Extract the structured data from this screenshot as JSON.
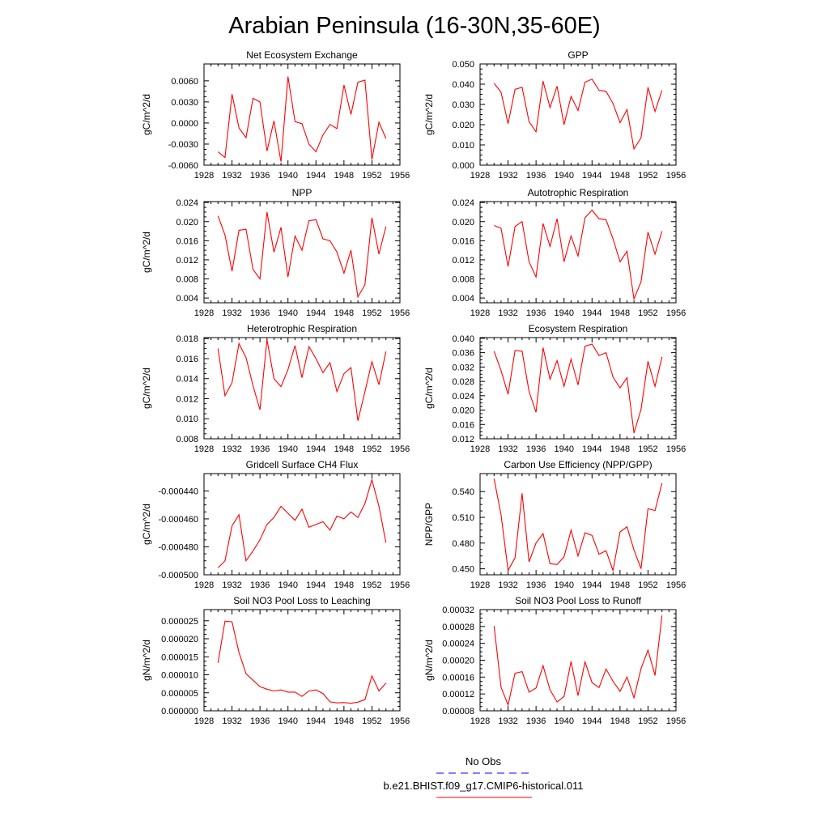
{
  "title": "Arabian Peninsula (16-30N,35-60E)",
  "legend": [
    {
      "label": "No Obs",
      "color": "#0000ff",
      "dash": true
    },
    {
      "label": "b.e21.BHIST.f09_g17.CMIP6-historical.011",
      "color": "#ff0000",
      "dash": false
    }
  ],
  "colors": {
    "series": "#ff0000",
    "obs": "#0000ff",
    "axes": "#000000"
  },
  "chart_data": [
    {
      "type": "line",
      "title": "Net Ecosystem Exchange",
      "xlabel": "",
      "ylabel": "gC/m^2/d",
      "xlim": [
        1928,
        1956
      ],
      "x_ticks": [
        1928,
        1932,
        1936,
        1940,
        1944,
        1948,
        1952,
        1956
      ],
      "ylim": [
        -0.006,
        0.0084
      ],
      "y_ticks": [
        -0.006,
        -0.003,
        0.0,
        0.003,
        0.006
      ],
      "y_tick_labels": [
        "-0.0060",
        "-0.0030",
        "0.0000",
        "0.0030",
        "0.0060"
      ],
      "series": [
        {
          "x": [
            1930,
            1931,
            1932,
            1933,
            1934,
            1935,
            1936,
            1937,
            1938,
            1939,
            1940,
            1941,
            1942,
            1943,
            1944,
            1945,
            1946,
            1947,
            1948,
            1949,
            1950,
            1951,
            1952,
            1953,
            1954
          ],
          "values": [
            -0.0041,
            -0.0049,
            0.0041,
            -0.0007,
            -0.0021,
            0.0035,
            0.003,
            -0.004,
            0.0003,
            -0.0055,
            0.0066,
            0.0002,
            -0.0001,
            -0.003,
            -0.0041,
            -0.0017,
            -0.0002,
            -0.0008,
            0.0054,
            0.0012,
            0.0058,
            0.0061,
            -0.0052,
            0.0001,
            -0.0022
          ]
        }
      ]
    },
    {
      "type": "line",
      "title": "GPP",
      "xlabel": "",
      "ylabel": "gC/m^2/d",
      "xlim": [
        1928,
        1956
      ],
      "x_ticks": [
        1928,
        1932,
        1936,
        1940,
        1944,
        1948,
        1952,
        1956
      ],
      "ylim": [
        0.0,
        0.05
      ],
      "y_ticks": [
        0.0,
        0.01,
        0.02,
        0.03,
        0.04,
        0.05
      ],
      "y_tick_labels": [
        "0.000",
        "0.010",
        "0.020",
        "0.030",
        "0.040",
        "0.050"
      ],
      "series": [
        {
          "x": [
            1930,
            1931,
            1932,
            1933,
            1934,
            1935,
            1936,
            1937,
            1938,
            1939,
            1940,
            1941,
            1942,
            1943,
            1944,
            1945,
            1946,
            1947,
            1948,
            1949,
            1950,
            1951,
            1952,
            1953,
            1954
          ],
          "values": [
            0.0405,
            0.036,
            0.0205,
            0.0375,
            0.0385,
            0.0215,
            0.0165,
            0.0415,
            0.0285,
            0.039,
            0.02,
            0.034,
            0.027,
            0.041,
            0.0425,
            0.037,
            0.0365,
            0.0305,
            0.021,
            0.0275,
            0.008,
            0.0135,
            0.0385,
            0.0265,
            0.037
          ]
        }
      ]
    },
    {
      "type": "line",
      "title": "NPP",
      "xlabel": "",
      "ylabel": "gC/m^2/d",
      "xlim": [
        1928,
        1956
      ],
      "x_ticks": [
        1928,
        1932,
        1936,
        1940,
        1944,
        1948,
        1952,
        1956
      ],
      "ylim": [
        0.003,
        0.0242
      ],
      "y_ticks": [
        0.004,
        0.008,
        0.012,
        0.016,
        0.02,
        0.024
      ],
      "y_tick_labels": [
        "0.004",
        "0.008",
        "0.012",
        "0.016",
        "0.020",
        "0.024"
      ],
      "series": [
        {
          "x": [
            1930,
            1931,
            1932,
            1933,
            1934,
            1935,
            1936,
            1937,
            1938,
            1939,
            1940,
            1941,
            1942,
            1943,
            1944,
            1945,
            1946,
            1947,
            1948,
            1949,
            1950,
            1951,
            1952,
            1953,
            1954
          ],
          "values": [
            0.0212,
            0.0172,
            0.0096,
            0.0182,
            0.0184,
            0.01,
            0.008,
            0.022,
            0.0136,
            0.0188,
            0.0084,
            0.017,
            0.014,
            0.0202,
            0.0204,
            0.0164,
            0.016,
            0.0136,
            0.0092,
            0.014,
            0.0042,
            0.0068,
            0.0208,
            0.0132,
            0.019
          ]
        }
      ]
    },
    {
      "type": "line",
      "title": "Autotrophic Respiration",
      "xlabel": "",
      "ylabel": "",
      "xlim": [
        1928,
        1956
      ],
      "x_ticks": [
        1928,
        1932,
        1936,
        1940,
        1944,
        1948,
        1952,
        1956
      ],
      "ylim": [
        0.003,
        0.0242
      ],
      "y_ticks": [
        0.004,
        0.008,
        0.012,
        0.016,
        0.02,
        0.024
      ],
      "y_tick_labels": [
        "0.004",
        "0.008",
        "0.012",
        "0.016",
        "0.020",
        "0.024"
      ],
      "series": [
        {
          "x": [
            1930,
            1931,
            1932,
            1933,
            1934,
            1935,
            1936,
            1937,
            1938,
            1939,
            1940,
            1941,
            1942,
            1943,
            1944,
            1945,
            1946,
            1947,
            1948,
            1949,
            1950,
            1951,
            1952,
            1953,
            1954
          ],
          "values": [
            0.0192,
            0.0186,
            0.0106,
            0.019,
            0.02,
            0.0116,
            0.0084,
            0.0196,
            0.0148,
            0.0206,
            0.0116,
            0.017,
            0.0128,
            0.0208,
            0.0224,
            0.0206,
            0.0204,
            0.0164,
            0.0116,
            0.0138,
            0.0038,
            0.0074,
            0.0178,
            0.0132,
            0.018
          ]
        }
      ]
    },
    {
      "type": "line",
      "title": "Heterotrophic Respiration",
      "xlabel": "",
      "ylabel": "gC/m^2/d",
      "xlim": [
        1928,
        1956
      ],
      "x_ticks": [
        1928,
        1932,
        1936,
        1940,
        1944,
        1948,
        1952,
        1956
      ],
      "ylim": [
        0.008,
        0.0181
      ],
      "y_ticks": [
        0.008,
        0.01,
        0.012,
        0.014,
        0.016,
        0.018
      ],
      "y_tick_labels": [
        "0.008",
        "0.010",
        "0.012",
        "0.014",
        "0.016",
        "0.018"
      ],
      "series": [
        {
          "x": [
            1930,
            1931,
            1932,
            1933,
            1934,
            1935,
            1936,
            1937,
            1938,
            1939,
            1940,
            1941,
            1942,
            1943,
            1944,
            1945,
            1946,
            1947,
            1948,
            1949,
            1950,
            1951,
            1952,
            1953,
            1954
          ],
          "values": [
            0.017,
            0.0123,
            0.0136,
            0.0175,
            0.0161,
            0.0133,
            0.0109,
            0.0179,
            0.014,
            0.0132,
            0.0149,
            0.0173,
            0.0141,
            0.0172,
            0.016,
            0.0146,
            0.0156,
            0.0127,
            0.0145,
            0.0151,
            0.0098,
            0.0127,
            0.0157,
            0.0134,
            0.0167
          ]
        }
      ]
    },
    {
      "type": "line",
      "title": "Ecosystem Respiration",
      "xlabel": "",
      "ylabel": "gC/m^2/d",
      "xlim": [
        1928,
        1956
      ],
      "x_ticks": [
        1928,
        1932,
        1936,
        1940,
        1944,
        1948,
        1952,
        1956
      ],
      "ylim": [
        0.012,
        0.0402
      ],
      "y_ticks": [
        0.012,
        0.016,
        0.02,
        0.024,
        0.028,
        0.032,
        0.036,
        0.04
      ],
      "y_tick_labels": [
        "0.012",
        "0.016",
        "0.020",
        "0.024",
        "0.028",
        "0.032",
        "0.036",
        "0.040"
      ],
      "series": [
        {
          "x": [
            1930,
            1931,
            1932,
            1933,
            1934,
            1935,
            1936,
            1937,
            1938,
            1939,
            1940,
            1941,
            1942,
            1943,
            1944,
            1945,
            1946,
            1947,
            1948,
            1949,
            1950,
            1951,
            1952,
            1953,
            1954
          ],
          "values": [
            0.0364,
            0.031,
            0.0244,
            0.0366,
            0.0364,
            0.0252,
            0.0194,
            0.0374,
            0.0286,
            0.0338,
            0.0266,
            0.0342,
            0.027,
            0.0378,
            0.0384,
            0.0352,
            0.036,
            0.0292,
            0.0262,
            0.029,
            0.0136,
            0.0202,
            0.0336,
            0.0266,
            0.0348
          ]
        }
      ]
    },
    {
      "type": "line",
      "title": "Gridcell Surface CH4 Flux",
      "xlabel": "",
      "ylabel": "gC/m^2/d",
      "xlim": [
        1928,
        1956
      ],
      "x_ticks": [
        1928,
        1932,
        1936,
        1940,
        1944,
        1948,
        1952,
        1956
      ],
      "ylim": [
        -0.0005,
        -0.0004276
      ],
      "y_ticks": [
        -0.0005,
        -0.00048,
        -0.00046,
        -0.00044
      ],
      "y_tick_labels": [
        "-0.000500",
        "-0.000480",
        "-0.000460",
        "-0.000440"
      ],
      "series": [
        {
          "x": [
            1930,
            1931,
            1932,
            1933,
            1934,
            1935,
            1936,
            1937,
            1938,
            1939,
            1940,
            1941,
            1942,
            1943,
            1944,
            1945,
            1946,
            1947,
            1948,
            1949,
            1950,
            1951,
            1952,
            1953,
            1954
          ],
          "values": [
            -0.000495,
            -0.00049,
            -0.000465,
            -0.000457,
            -0.00049,
            -0.000483,
            -0.000475,
            -0.000464,
            -0.000459,
            -0.000451,
            -0.000456,
            -0.000461,
            -0.000453,
            -0.000466,
            -0.000464,
            -0.000462,
            -0.000468,
            -0.000458,
            -0.00046,
            -0.000455,
            -0.000459,
            -0.000449,
            -0.000432,
            -0.000451,
            -0.000477
          ]
        }
      ]
    },
    {
      "type": "line",
      "title": "Carbon Use Efficiency (NPP/GPP)",
      "xlabel": "",
      "ylabel": "NPP/GPP",
      "xlim": [
        1928,
        1956
      ],
      "x_ticks": [
        1928,
        1932,
        1936,
        1940,
        1944,
        1948,
        1952,
        1956
      ],
      "ylim": [
        0.443,
        0.561
      ],
      "y_ticks": [
        0.45,
        0.48,
        0.51,
        0.54
      ],
      "y_tick_labels": [
        "0.450",
        "0.480",
        "0.510",
        "0.540"
      ],
      "series": [
        {
          "x": [
            1930,
            1931,
            1932,
            1933,
            1934,
            1935,
            1936,
            1937,
            1938,
            1939,
            1940,
            1941,
            1942,
            1943,
            1944,
            1945,
            1946,
            1947,
            1948,
            1949,
            1950,
            1951,
            1952,
            1953,
            1954
          ],
          "values": [
            0.555,
            0.513,
            0.448,
            0.463,
            0.538,
            0.458,
            0.48,
            0.491,
            0.456,
            0.455,
            0.464,
            0.495,
            0.465,
            0.492,
            0.489,
            0.467,
            0.471,
            0.448,
            0.493,
            0.499,
            0.472,
            0.45,
            0.52,
            0.518,
            0.55
          ]
        }
      ]
    },
    {
      "type": "line",
      "title": "Soil NO3 Pool Loss to Leaching",
      "xlabel": "",
      "ylabel": "gN/m^2/d",
      "xlim": [
        1928,
        1956
      ],
      "x_ticks": [
        1928,
        1932,
        1936,
        1940,
        1944,
        1948,
        1952,
        1956
      ],
      "ylim": [
        0.0,
        2.81e-05
      ],
      "y_ticks": [
        0.0,
        5e-06,
        1e-05,
        1.5e-05,
        2e-05,
        2.5e-05
      ],
      "y_tick_labels": [
        "0.000000",
        "0.000005",
        "0.000010",
        "0.000015",
        "0.000020",
        "0.000025"
      ],
      "series": [
        {
          "x": [
            1930,
            1931,
            1932,
            1933,
            1934,
            1935,
            1936,
            1937,
            1938,
            1939,
            1940,
            1941,
            1942,
            1943,
            1944,
            1945,
            1946,
            1947,
            1948,
            1949,
            1950,
            1951,
            1952,
            1953,
            1954
          ],
          "values": [
            1.33e-05,
            2.49e-05,
            2.47e-05,
            1.62e-05,
            1.03e-05,
            8.5e-06,
            6.7e-06,
            6e-06,
            5.5e-06,
            5.8e-06,
            5.2e-06,
            5.2e-06,
            4e-06,
            5.5e-06,
            5.8e-06,
            4.8e-06,
            2.5e-06,
            2.2e-06,
            2.3e-06,
            2.1e-06,
            2.4e-06,
            3.1e-06,
            9.7e-06,
            5.5e-06,
            7.7e-06
          ]
        }
      ]
    },
    {
      "type": "line",
      "title": "Soil NO3 Pool Loss to Runoff",
      "xlabel": "",
      "ylabel": "gN/m^2/d",
      "xlim": [
        1928,
        1956
      ],
      "x_ticks": [
        1928,
        1932,
        1936,
        1940,
        1944,
        1948,
        1952,
        1956
      ],
      "ylim": [
        8e-05,
        0.00032
      ],
      "y_ticks": [
        8e-05,
        0.00012,
        0.00016,
        0.0002,
        0.00024,
        0.00028,
        0.00032
      ],
      "y_tick_labels": [
        "0.00008",
        "0.00012",
        "0.00016",
        "0.00020",
        "0.00024",
        "0.00028",
        "0.00032"
      ],
      "series": [
        {
          "x": [
            1930,
            1931,
            1932,
            1933,
            1934,
            1935,
            1936,
            1937,
            1938,
            1939,
            1940,
            1941,
            1942,
            1943,
            1944,
            1945,
            1946,
            1947,
            1948,
            1949,
            1950,
            1951,
            1952,
            1953,
            1954
          ],
          "values": [
            0.000281,
            0.000136,
            9.4e-05,
            0.000169,
            0.000173,
            0.000124,
            0.000134,
            0.000187,
            0.00013,
            0.000101,
            0.000114,
            0.000197,
            0.000116,
            0.000196,
            0.000147,
            0.000135,
            0.000179,
            0.00015,
            0.000126,
            0.00016,
            0.000111,
            0.00018,
            0.000224,
            0.000164,
            0.000306
          ]
        }
      ]
    }
  ]
}
